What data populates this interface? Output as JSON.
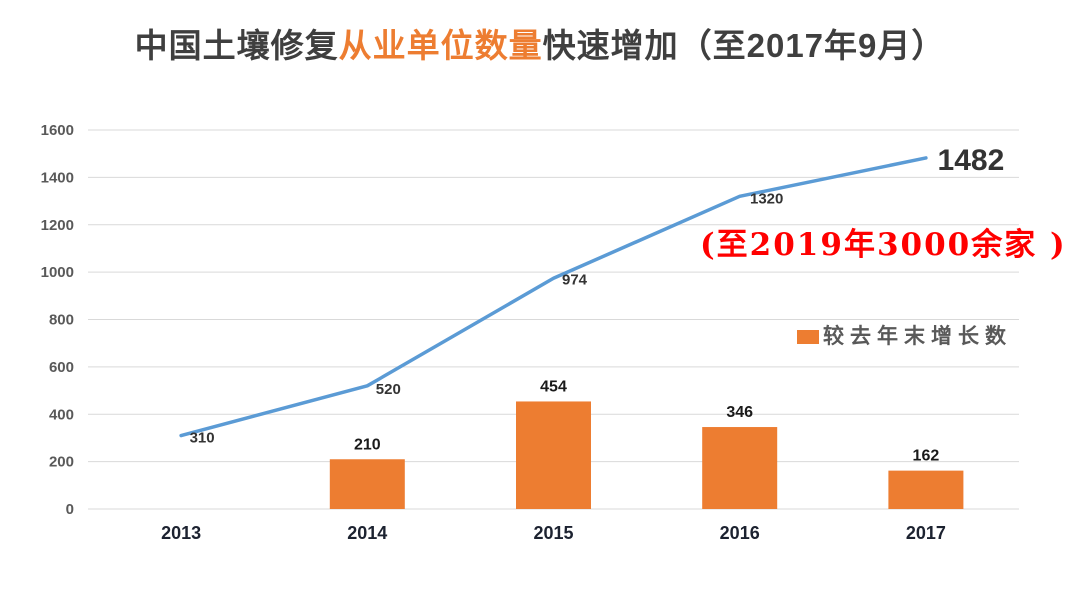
{
  "title": {
    "prefix": "中国土壤修复",
    "highlight": "从业单位数量",
    "suffix": "快速增加（至2017年9月）"
  },
  "colors": {
    "accent_orange": "#ED7D31",
    "line_blue": "#5B9BD5",
    "annotation_red": "#FF0000",
    "grid_gray": "#D9D9D9",
    "axis_label_gray": "#595959"
  },
  "chart_data": {
    "type": "line+bar combo",
    "categories": [
      "2013",
      "2014",
      "2015",
      "2016",
      "2017"
    ],
    "series": [
      {
        "name": "从业单位数量",
        "type": "line",
        "color": "#5B9BD5",
        "values": [
          310,
          520,
          974,
          1320,
          1482
        ],
        "point_labels": [
          "310",
          "520",
          "974",
          "1320",
          "1482"
        ]
      },
      {
        "name": "较去年末增长数",
        "type": "bar",
        "color": "#ED7D31",
        "values": [
          null,
          210,
          454,
          346,
          162
        ],
        "point_labels": [
          null,
          "210",
          "454",
          "346",
          "162"
        ]
      }
    ],
    "ylim": [
      0,
      1600
    ],
    "ytick_step": 200,
    "grid": true,
    "emphasize_last_line_label": true,
    "legend": {
      "label": "较去年末增长数",
      "swatch_color": "#ED7D31",
      "position": "right-middle"
    },
    "annotation": {
      "text": "(至2019年3000余家 )",
      "color": "#FF0000"
    }
  }
}
